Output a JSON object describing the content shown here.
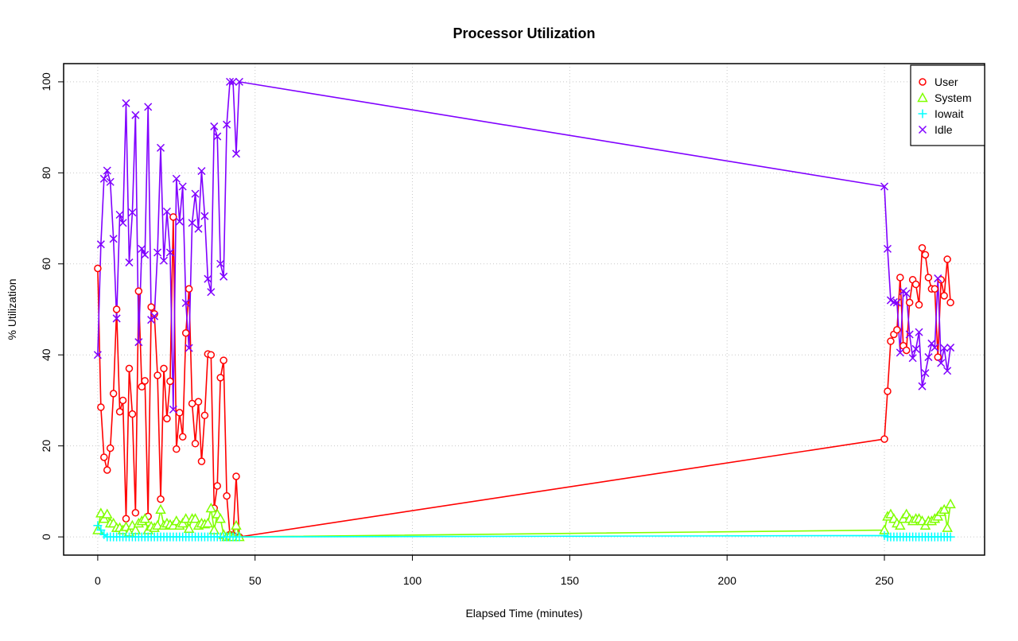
{
  "chart_data": {
    "type": "line",
    "title": "Processor Utilization",
    "x_label": "Elapsed Time (minutes)",
    "y_label": "% Utilization",
    "x": [
      0,
      1,
      2,
      3,
      4,
      5,
      6,
      7,
      8,
      9,
      10,
      11,
      12,
      13,
      14,
      15,
      16,
      17,
      18,
      19,
      20,
      21,
      22,
      23,
      24,
      25,
      26,
      27,
      28,
      29,
      30,
      31,
      32,
      33,
      34,
      35,
      36,
      37,
      38,
      39,
      40,
      41,
      42,
      43,
      44,
      45,
      250,
      251,
      252,
      253,
      254,
      255,
      256,
      257,
      258,
      259,
      260,
      261,
      262,
      263,
      264,
      265,
      266,
      267,
      268,
      269,
      270,
      271
    ],
    "series": [
      {
        "name": "User",
        "color": "#ff0000",
        "marker": "circle",
        "values": [
          59,
          28.5,
          17.5,
          14.7,
          19.5,
          31.5,
          50,
          27.5,
          30,
          4,
          37,
          27,
          5.3,
          54,
          33,
          34.3,
          4.5,
          50.5,
          49,
          35.5,
          8.3,
          37,
          26,
          34.2,
          70.3,
          19.3,
          27.3,
          22,
          44.8,
          54.5,
          29.3,
          20.5,
          29.7,
          16.6,
          26.7,
          40.2,
          40,
          6.3,
          11.2,
          35,
          38.8,
          9,
          0.5,
          0.3,
          13.3,
          0,
          21.5,
          32,
          43,
          44.5,
          45.5,
          57,
          42,
          41,
          51.5,
          56.5,
          55.5,
          51,
          63.5,
          62,
          57,
          54.5,
          54.5,
          39.5,
          56.5,
          53,
          61,
          51.5
        ]
      },
      {
        "name": "System",
        "color": "#80ff00",
        "marker": "triangle",
        "values": [
          1.5,
          5.2,
          4,
          5,
          3,
          3,
          2,
          2,
          1.5,
          2.2,
          1,
          2.5,
          1.5,
          3,
          3.5,
          4,
          1.5,
          2.3,
          2,
          2.5,
          6,
          2.5,
          3,
          2.7,
          2.5,
          3.5,
          2.5,
          3,
          4,
          1.8,
          4,
          4,
          2.5,
          3,
          2.8,
          3,
          6.3,
          1.5,
          5,
          4,
          0.5,
          0,
          0.3,
          0,
          2.5,
          0,
          1.5,
          4.5,
          5,
          4,
          3,
          2.5,
          4,
          5,
          4,
          3.5,
          4,
          4,
          3.5,
          2.5,
          3.5,
          3.5,
          4,
          4.5,
          5.5,
          6,
          2,
          7.2
        ]
      },
      {
        "name": "Iowait",
        "color": "#00ffff",
        "marker": "plus",
        "values": [
          2.5,
          1.5,
          0.5,
          0,
          0,
          0,
          0,
          0,
          0,
          0,
          0,
          0,
          0,
          0,
          0,
          0,
          0,
          0,
          0,
          0,
          0,
          0,
          0,
          0,
          0,
          0,
          0,
          0,
          0,
          0,
          0,
          0,
          0,
          0,
          0,
          0,
          0,
          0,
          0,
          0,
          0,
          0,
          0,
          0,
          0,
          0,
          0.3,
          0,
          0,
          0,
          0,
          0,
          0,
          0,
          0,
          0,
          0,
          0,
          0,
          0,
          0,
          0,
          0,
          0,
          0,
          0,
          0,
          0
        ]
      },
      {
        "name": "Idle",
        "color": "#8000ff",
        "marker": "x",
        "values": [
          40,
          64.3,
          78.7,
          80.5,
          78,
          65.5,
          48,
          70.8,
          69,
          95.3,
          60.3,
          71.3,
          92.7,
          42.8,
          63.3,
          62,
          94.5,
          47.7,
          48.5,
          62.5,
          85.5,
          60.7,
          71.5,
          62.5,
          28,
          78.7,
          69.3,
          77,
          51.4,
          41.5,
          69,
          75.4,
          67.7,
          80.4,
          70.5,
          56.7,
          53.8,
          90.2,
          88,
          60,
          57.2,
          90.6,
          100,
          100,
          84.2,
          100,
          77,
          63.3,
          52,
          51.6,
          51.5,
          40.5,
          54,
          53.5,
          44.5,
          39.3,
          41.3,
          45,
          33.1,
          36,
          39.5,
          42.5,
          41.6,
          56.8,
          38.2,
          41.5,
          36.5,
          41.6
        ]
      }
    ],
    "xlim": [
      -10.84,
      281.84
    ],
    "xticks": [
      0,
      50,
      100,
      150,
      200,
      250
    ],
    "ylim": [
      -4,
      104
    ],
    "yticks": [
      0,
      20,
      40,
      60,
      80,
      100
    ],
    "grid": true,
    "legend": "topright"
  }
}
